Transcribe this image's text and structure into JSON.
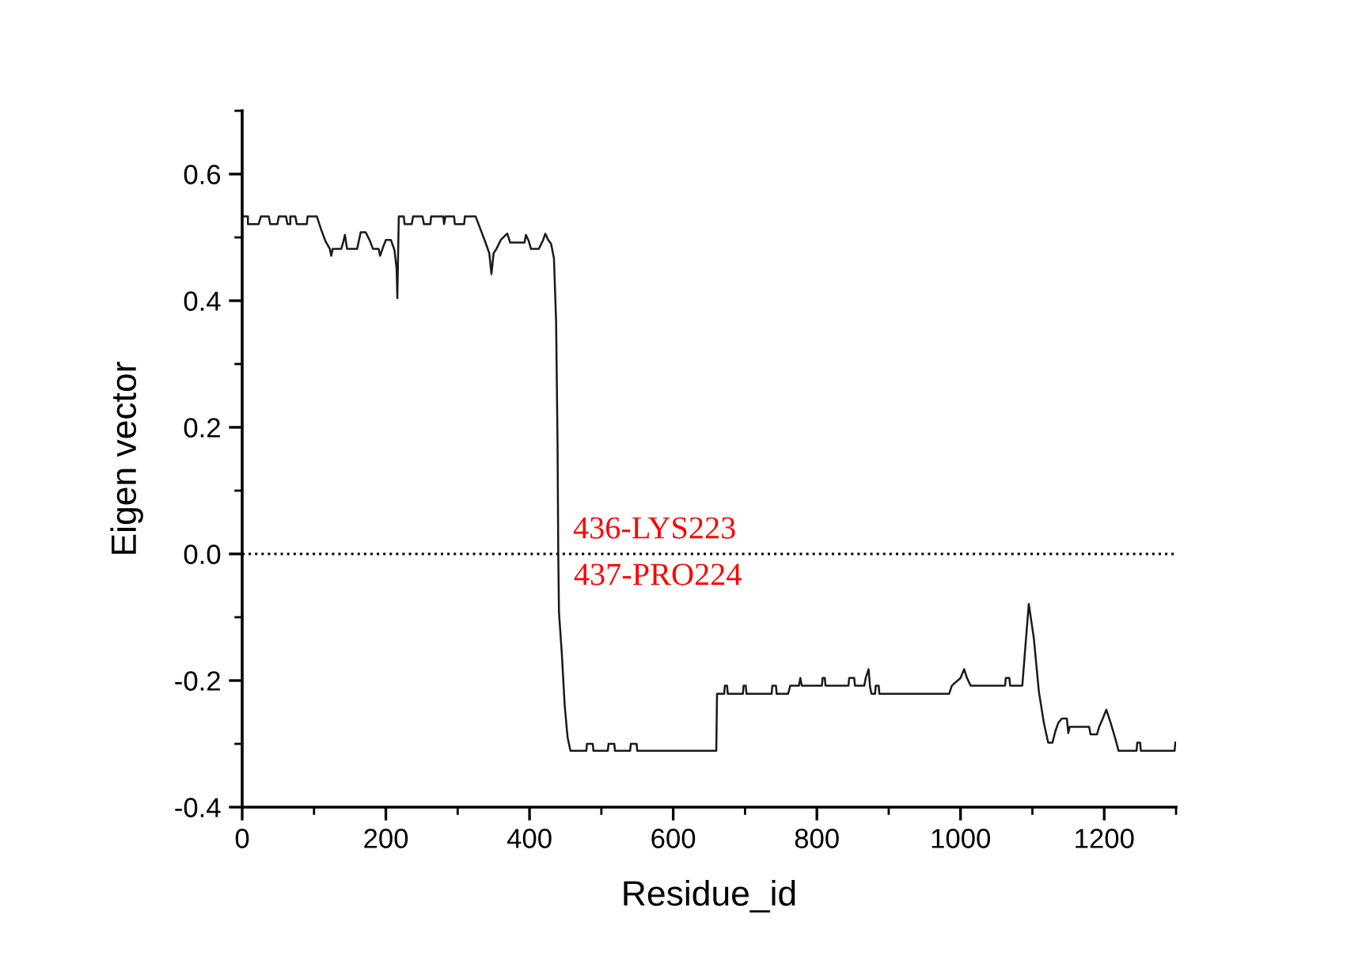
{
  "chart_data": {
    "type": "line",
    "xlabel": "Residue_id",
    "ylabel": "Eigen vector",
    "xlim": [
      0,
      1300
    ],
    "ylim": [
      -0.4,
      0.7
    ],
    "xticks": [
      0,
      {
        "value": 100,
        "label": null
      },
      200,
      {
        "value": 300,
        "label": null
      },
      400,
      {
        "value": 500,
        "label": null
      },
      600,
      {
        "value": 700,
        "label": null
      },
      800,
      {
        "value": 900,
        "label": null
      },
      1000,
      {
        "value": 1100,
        "label": null
      },
      1200,
      {
        "value": 1300,
        "label": null
      }
    ],
    "yticks": [
      -0.4,
      {
        "value": -0.3,
        "label": null
      },
      -0.2,
      {
        "value": -0.1,
        "label": null
      },
      {
        "value": 0,
        "label": "0.0"
      },
      {
        "value": 0.1,
        "label": null
      },
      0.2,
      {
        "value": 0.3,
        "label": null
      },
      0.4,
      {
        "value": 0.5,
        "label": null
      },
      0.6,
      {
        "value": 0.7,
        "label": null
      }
    ],
    "grid": false,
    "legend": false,
    "marker": "none",
    "line_style": "solid",
    "ref_lines": [
      {
        "axis": "y",
        "value": 0,
        "color": "#000000",
        "line_style": "dotted"
      }
    ],
    "annotations": [
      {
        "text": "436-LYS223",
        "x": 436,
        "y": 0
      },
      {
        "text": "437-PRO224",
        "x": 437,
        "y": 0
      }
    ],
    "series": [
      {
        "color": "#1a1a1a",
        "x": [
          1,
          8,
          8,
          23,
          26,
          37,
          39,
          49,
          51,
          61,
          63,
          67,
          67,
          74,
          76,
          90,
          91,
          104,
          110,
          116,
          122,
          124,
          126,
          138,
          141,
          143,
          146,
          160,
          165,
          172,
          178,
          182,
          190,
          192,
          196,
          200,
          207,
          212,
          215,
          216,
          218,
          225,
          226,
          236,
          238,
          251,
          253,
          262,
          263,
          280,
          281,
          283,
          295,
          296,
          309,
          310,
          325,
          332,
          338,
          344,
          347,
          350,
          354,
          360,
          369,
          373,
          393,
          395,
          399,
          402,
          413,
          419,
          422,
          426,
          430,
          434,
          437,
          439,
          440,
          441,
          445,
          449,
          453,
          457,
          479,
          480,
          488,
          489,
          509,
          510,
          518,
          519,
          540,
          541,
          549,
          550,
          660,
          661,
          671,
          672,
          675,
          676,
          697,
          698,
          701,
          702,
          737,
          738,
          743,
          744,
          760,
          763,
          775,
          777,
          779,
          807,
          808,
          811,
          812,
          844,
          845,
          852,
          853,
          866,
          868,
          872,
          874,
          876,
          881,
          882,
          886,
          887,
          984,
          988,
          1000,
          1005,
          1009,
          1014,
          1062,
          1063,
          1068,
          1069,
          1086,
          1090,
          1095,
          1102,
          1109,
          1116,
          1122,
          1128,
          1132,
          1136,
          1141,
          1148,
          1150,
          1152,
          1179,
          1181,
          1190,
          1193,
          1198,
          1203,
          1209,
          1215,
          1220,
          1245,
          1246,
          1250,
          1251,
          1298,
          1299
        ],
        "values": [
          0.533,
          0.533,
          0.521,
          0.521,
          0.533,
          0.533,
          0.521,
          0.521,
          0.533,
          0.533,
          0.521,
          0.521,
          0.533,
          0.533,
          0.521,
          0.521,
          0.533,
          0.533,
          0.512,
          0.494,
          0.482,
          0.471,
          0.482,
          0.482,
          0.494,
          0.504,
          0.482,
          0.482,
          0.508,
          0.508,
          0.494,
          0.482,
          0.482,
          0.471,
          0.484,
          0.496,
          0.496,
          0.48,
          0.45,
          0.404,
          0.533,
          0.533,
          0.521,
          0.521,
          0.533,
          0.533,
          0.521,
          0.521,
          0.533,
          0.533,
          0.521,
          0.533,
          0.533,
          0.521,
          0.521,
          0.533,
          0.533,
          0.512,
          0.494,
          0.475,
          0.442,
          0.475,
          0.482,
          0.496,
          0.506,
          0.492,
          0.492,
          0.504,
          0.494,
          0.482,
          0.482,
          0.496,
          0.506,
          0.496,
          0.49,
          0.467,
          0.367,
          0.175,
          0.0,
          -0.092,
          -0.158,
          -0.24,
          -0.29,
          -0.311,
          -0.311,
          -0.3,
          -0.3,
          -0.311,
          -0.311,
          -0.3,
          -0.3,
          -0.311,
          -0.311,
          -0.3,
          -0.3,
          -0.311,
          -0.311,
          -0.221,
          -0.221,
          -0.208,
          -0.208,
          -0.221,
          -0.221,
          -0.208,
          -0.208,
          -0.221,
          -0.221,
          -0.208,
          -0.208,
          -0.221,
          -0.221,
          -0.208,
          -0.208,
          -0.196,
          -0.208,
          -0.208,
          -0.196,
          -0.196,
          -0.208,
          -0.208,
          -0.196,
          -0.196,
          -0.208,
          -0.208,
          -0.196,
          -0.182,
          -0.21,
          -0.221,
          -0.221,
          -0.208,
          -0.208,
          -0.221,
          -0.221,
          -0.208,
          -0.196,
          -0.182,
          -0.196,
          -0.208,
          -0.208,
          -0.196,
          -0.196,
          -0.208,
          -0.208,
          -0.15,
          -0.079,
          -0.133,
          -0.217,
          -0.267,
          -0.298,
          -0.298,
          -0.28,
          -0.267,
          -0.26,
          -0.26,
          -0.283,
          -0.273,
          -0.273,
          -0.285,
          -0.285,
          -0.273,
          -0.26,
          -0.246,
          -0.267,
          -0.29,
          -0.311,
          -0.311,
          -0.298,
          -0.298,
          -0.311,
          -0.311,
          -0.298
        ]
      }
    ]
  }
}
